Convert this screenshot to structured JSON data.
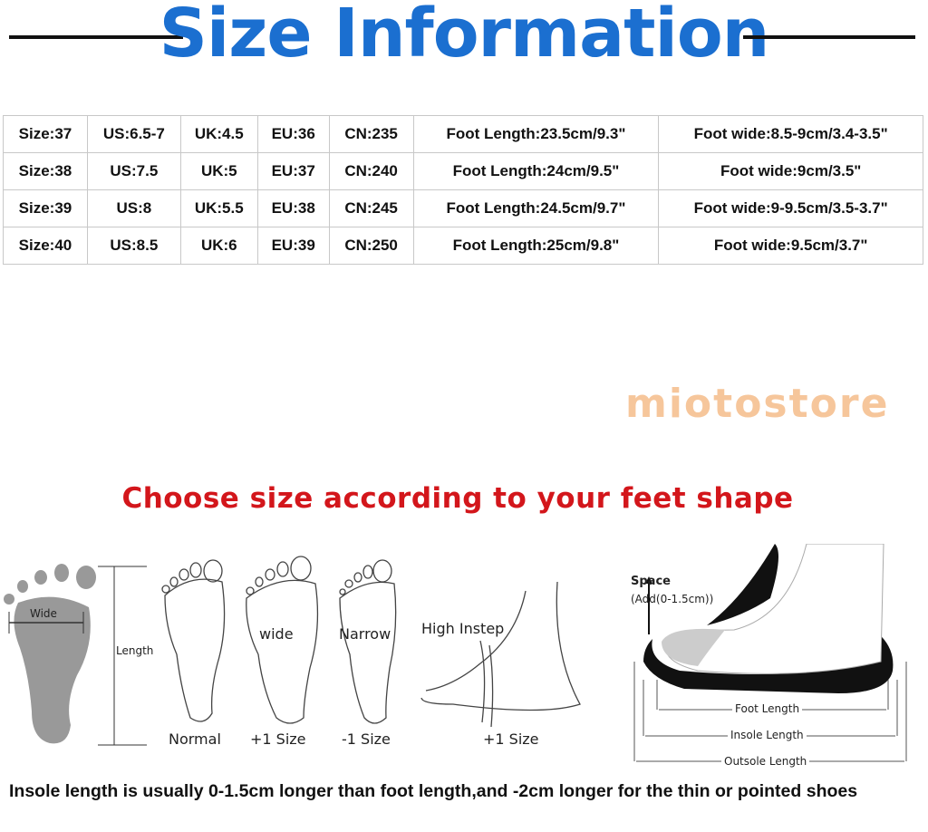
{
  "title": "Size Information",
  "size_table": {
    "rows": [
      [
        "Size:37",
        "US:6.5-7",
        "UK:4.5",
        "EU:36",
        "CN:235",
        "Foot Length:23.5cm/9.3\"",
        "Foot wide:8.5-9cm/3.4-3.5\""
      ],
      [
        "Size:38",
        "US:7.5",
        "UK:5",
        "EU:37",
        "CN:240",
        "Foot Length:24cm/9.5\"",
        "Foot wide:9cm/3.5\""
      ],
      [
        "Size:39",
        "US:8",
        "UK:5.5",
        "EU:38",
        "CN:245",
        "Foot Length:24.5cm/9.7\"",
        "Foot wide:9-9.5cm/3.5-3.7\""
      ],
      [
        "Size:40",
        "US:8.5",
        "UK:6",
        "EU:39",
        "CN:250",
        "Foot Length:25cm/9.8\"",
        "Foot wide:9.5cm/3.7\""
      ]
    ]
  },
  "guide": {
    "heading": "Choose size according to your feet shape",
    "wide_label": "Wide",
    "length_label": "Length",
    "feet": [
      {
        "label": "Normal"
      },
      {
        "label": "+1 Size",
        "mark": "wide"
      },
      {
        "label": "-1 Size",
        "mark": "Narrow"
      },
      {
        "label": "+1 Size",
        "mark": "High Instep"
      }
    ],
    "shoe": {
      "space": "Space",
      "space_note": "(Add(0-1.5cm))",
      "foot_length": "Foot Length",
      "insole_length": "Insole Length",
      "outsole_length": "Outsole Length"
    },
    "footnote": "Insole length is usually 0-1.5cm longer than foot length,and -2cm longer for the thin or pointed shoes",
    "watermark": "miotostore"
  },
  "colors": {
    "title": "#1b6fd0",
    "heading": "#d3161b"
  }
}
